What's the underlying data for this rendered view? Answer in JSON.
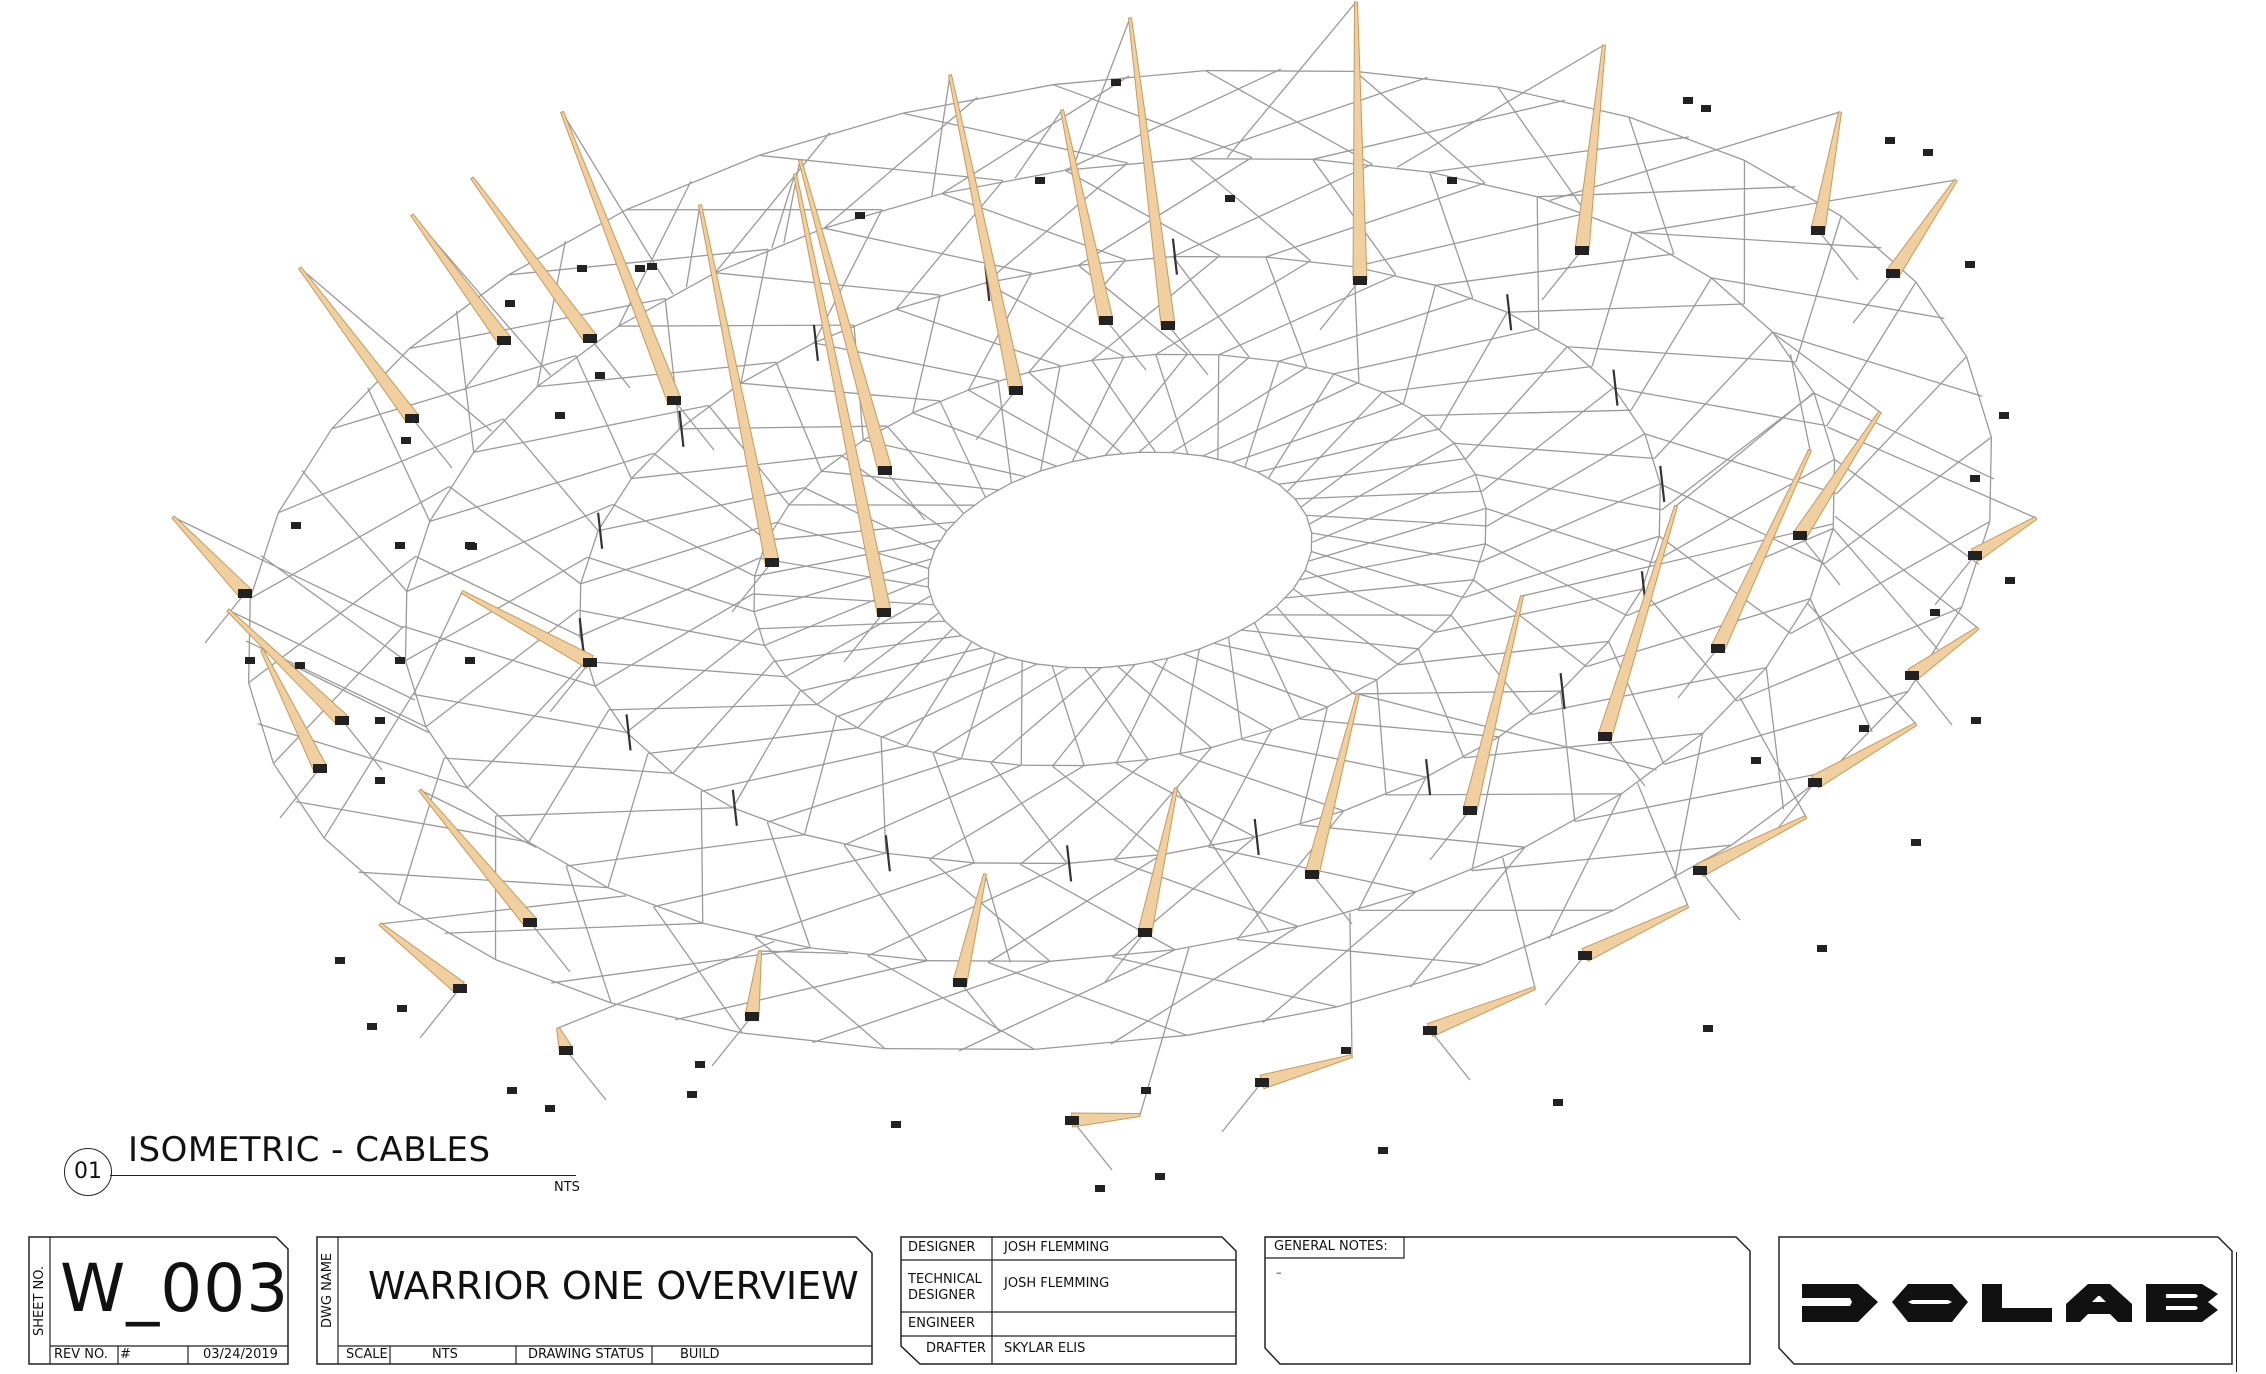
{
  "view": {
    "number": "01",
    "title": "ISOMETRIC - CABLES",
    "scale": "NTS"
  },
  "sheet": {
    "sheet_no_label": "SHEET NO.",
    "sheet_no": "W_003",
    "rev_no_label": "REV NO.",
    "rev_no": "#",
    "date": "03/24/2019"
  },
  "drawing": {
    "dwg_name_label": "DWG NAME",
    "dwg_name": "WARRIOR ONE OVERVIEW",
    "scale_label": "SCALE",
    "scale": "NTS",
    "status_label": "DRAWING STATUS",
    "status": "BUILD"
  },
  "credits": {
    "designer_label": "DESIGNER",
    "designer": "JOSH FLEMMING",
    "tech_designer_label_1": "TECHNICAL",
    "tech_designer_label_2": "DESIGNER",
    "tech_designer": "JOSH FLEMMING",
    "engineer_label": "ENGINEER",
    "engineer": "",
    "drafter_label": "DRAFTER",
    "drafter": "SKYLAR ELIS"
  },
  "notes": {
    "label": "GENERAL NOTES:",
    "body": "–"
  },
  "logo": {
    "alt": "logo-mark"
  },
  "colors": {
    "mast": "#f0cfa0",
    "mast_edge": "#c79a5c",
    "cable": "#9a9a9a",
    "ink": "#111111"
  }
}
